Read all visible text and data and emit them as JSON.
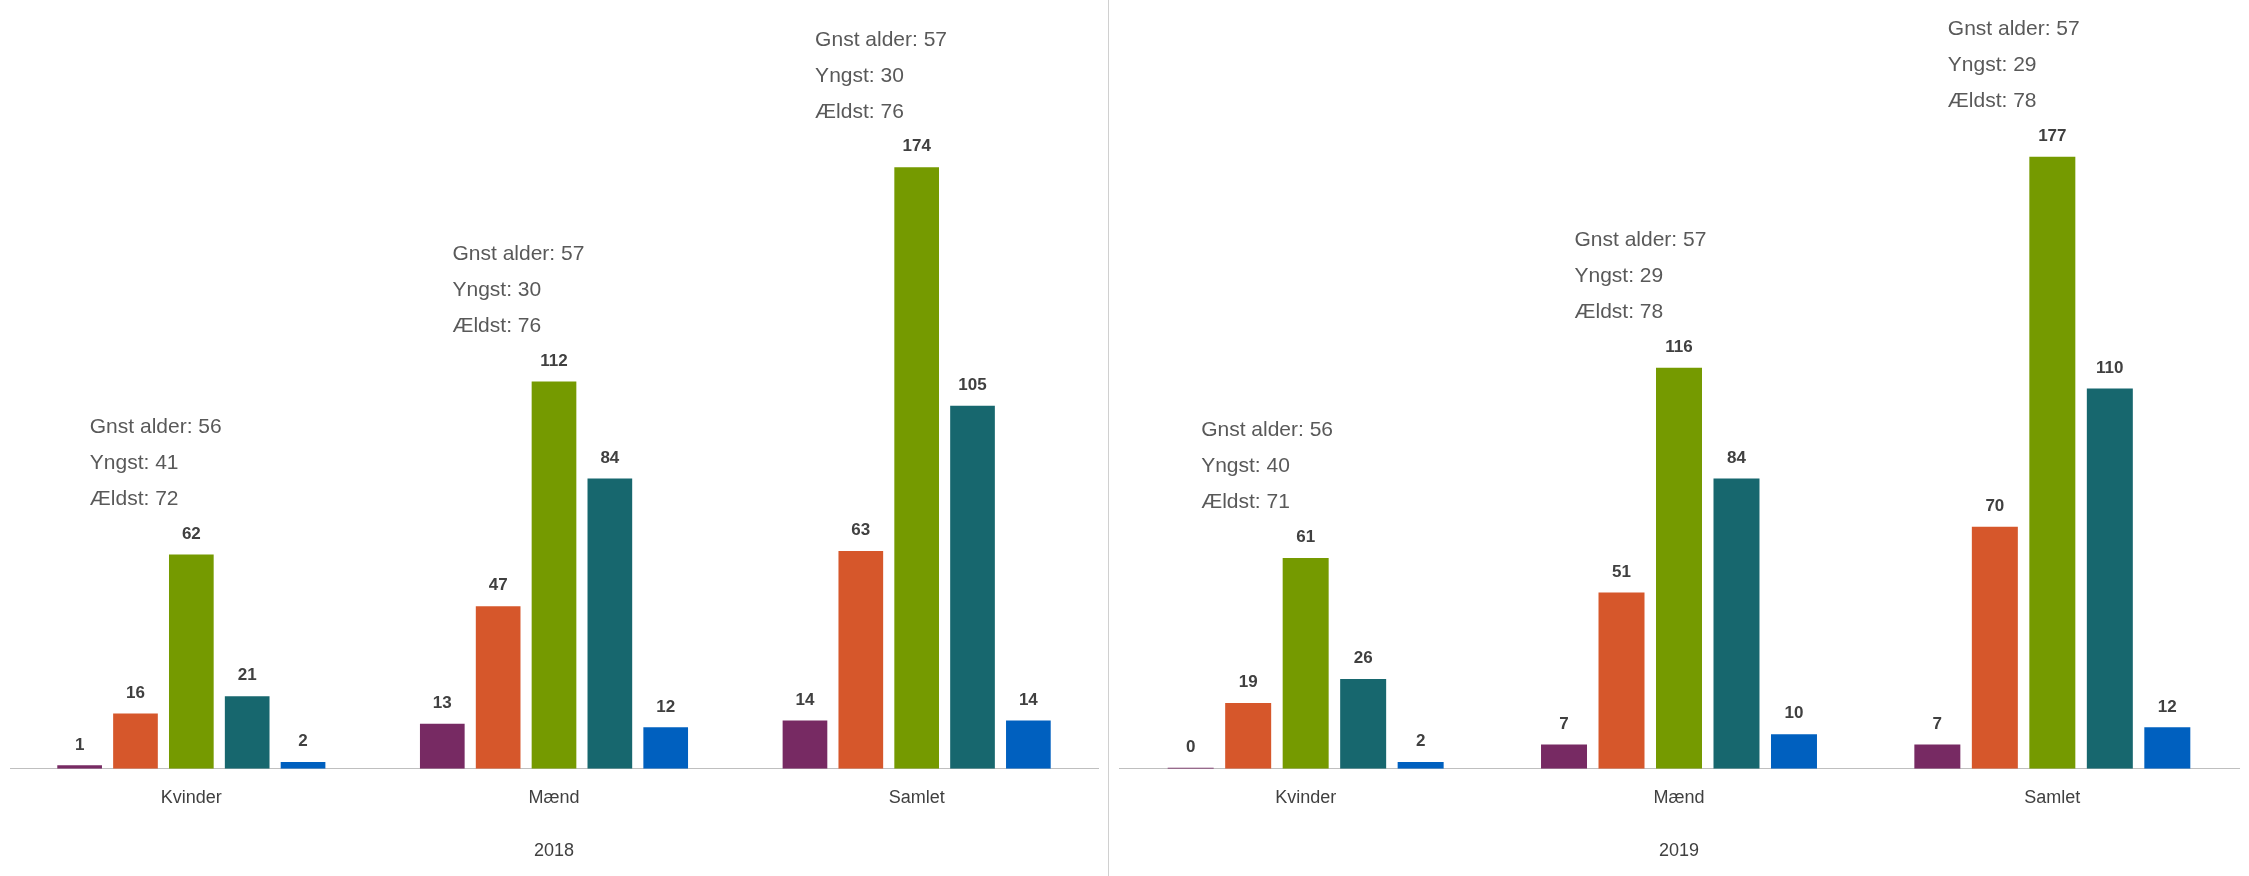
{
  "chart_data": [
    {
      "type": "bar",
      "categories": [
        "Kvinder",
        "Mænd",
        "Samlet"
      ],
      "xlabel": "2018",
      "tick_labels": "x",
      "grid": false,
      "legend": false,
      "data_labels": true,
      "series": [
        {
          "color": "#772a63",
          "values": [
            1,
            13,
            14
          ]
        },
        {
          "color": "#d6572b",
          "values": [
            16,
            47,
            63
          ]
        },
        {
          "color": "#759a00",
          "values": [
            62,
            112,
            174
          ]
        },
        {
          "color": "#17676e",
          "values": [
            21,
            84,
            105
          ]
        },
        {
          "color": "#0060bf",
          "values": [
            2,
            12,
            14
          ]
        }
      ],
      "annotations": [
        {
          "text": "Gnst alder: 56\nYngst: 41\nÆldst: 72",
          "x": "Kvinder",
          "y": 62
        },
        {
          "text": "Gnst alder: 57\nYngst: 30\nÆldst: 76",
          "x": "Mænd",
          "y": 112
        },
        {
          "text": "Gnst alder: 57\nYngst: 30\nÆldst: 76",
          "x": "Samlet",
          "y": 174
        }
      ]
    },
    {
      "type": "bar",
      "categories": [
        "Kvinder",
        "Mænd",
        "Samlet"
      ],
      "xlabel": "2019",
      "tick_labels": "x",
      "grid": false,
      "legend": false,
      "data_labels": true,
      "series": [
        {
          "color": "#772a63",
          "values": [
            0,
            7,
            7
          ]
        },
        {
          "color": "#d6572b",
          "values": [
            19,
            51,
            70
          ]
        },
        {
          "color": "#759a00",
          "values": [
            61,
            116,
            177
          ]
        },
        {
          "color": "#17676e",
          "values": [
            26,
            84,
            110
          ]
        },
        {
          "color": "#0060bf",
          "values": [
            2,
            10,
            12
          ]
        }
      ],
      "annotations": [
        {
          "text": "Gnst alder: 56\nYngst: 40\nÆldst: 71",
          "x": "Kvinder",
          "y": 61
        },
        {
          "text": "Gnst alder: 57\nYngst: 29\nÆldst: 78",
          "x": "Mænd",
          "y": 116
        },
        {
          "text": "Gnst alder: 57\nYngst: 29\nÆldst: 78",
          "x": "Samlet",
          "y": 177
        }
      ]
    }
  ]
}
